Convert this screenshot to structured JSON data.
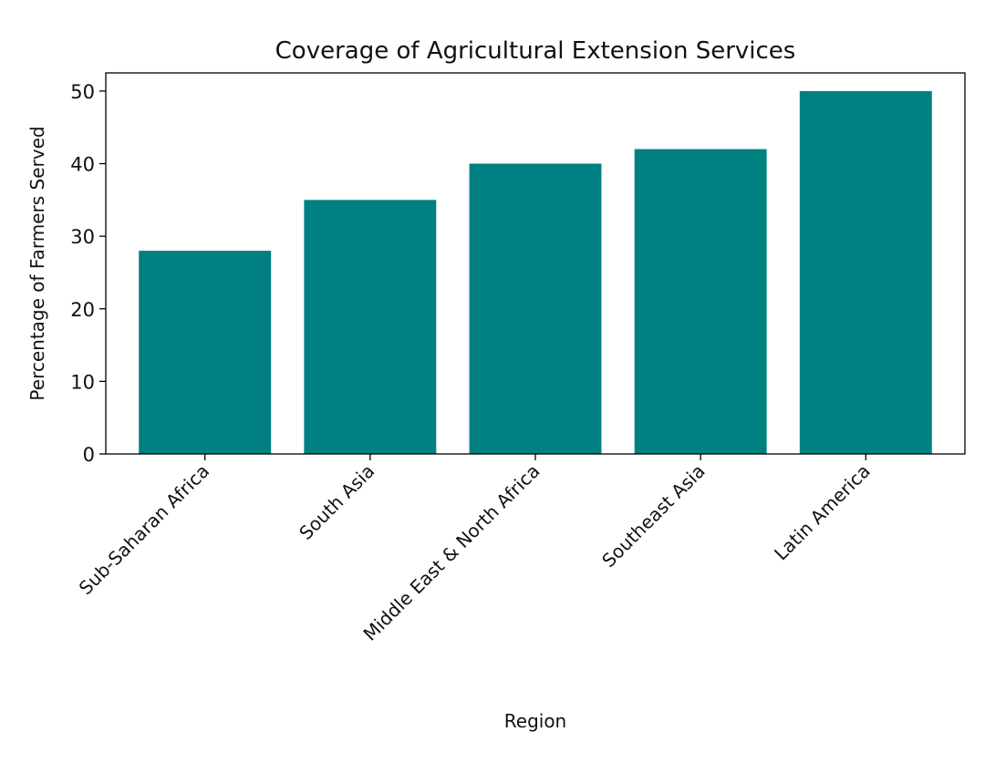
{
  "chart_data": {
    "type": "bar",
    "title": "Coverage of Agricultural Extension Services",
    "xlabel": "Region",
    "ylabel": "Percentage of Farmers Served",
    "categories": [
      "Sub-Saharan Africa",
      "South Asia",
      "Middle East & North Africa",
      "Southeast Asia",
      "Latin America"
    ],
    "values": [
      28,
      35,
      40,
      42,
      50
    ],
    "ylim": [
      0,
      52.5
    ],
    "yticks": [
      0,
      10,
      20,
      30,
      40,
      50
    ],
    "grid": false,
    "bar_color": "#008080"
  }
}
